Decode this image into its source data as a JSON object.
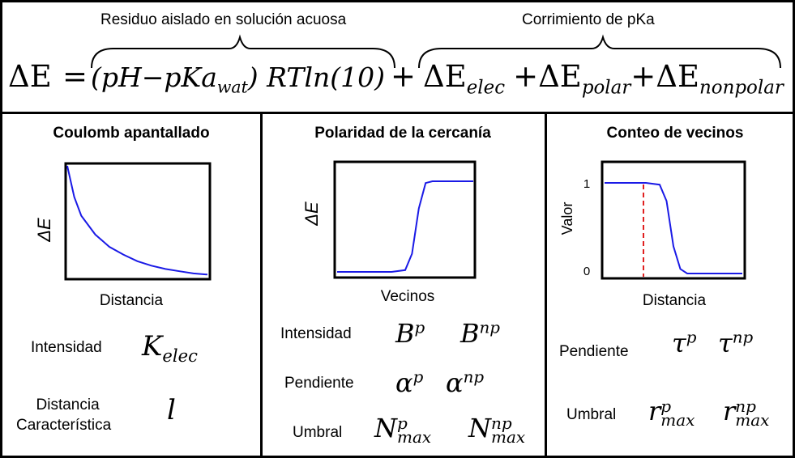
{
  "header": {
    "label_left": "Residuo aislado en solución acuosa",
    "label_right": "Corrimiento de pKa",
    "eq_lhs": "ΔE",
    "eq_equals": "=",
    "eq_term1": "(pH−pKa",
    "eq_term1_sub": "wat",
    "eq_term1_tail": ") RTln(10)",
    "eq_plus1": "+",
    "eq_elec": "ΔE",
    "eq_elec_sub": "elec",
    "eq_plus2": "+ΔE",
    "eq_polar_sub": "polar",
    "eq_plus3": "+ΔE",
    "eq_nonpolar_sub": "nonpolar"
  },
  "panels": {
    "coulomb": {
      "title": "Coulomb apantallado",
      "ylabel": "ΔE",
      "xlabel": "Distancia",
      "param1_label": "Intensidad",
      "param1_sym": "K",
      "param1_sub": "elec",
      "param2_label_l1": "Distancia",
      "param2_label_l2": "Característica",
      "param2_sym": "l"
    },
    "polar": {
      "title": "Polaridad de la cercanía",
      "ylabel": "ΔE",
      "xlabel": "Vecinos",
      "row1_label": "Intensidad",
      "row1_a": "B",
      "row1_a_sup": "p",
      "row1_b": "B",
      "row1_b_sup": "np",
      "row2_label": "Pendiente",
      "row2_a": "α",
      "row2_a_sup": "p",
      "row2_b": "α",
      "row2_b_sup": "np",
      "row3_label": "Umbral",
      "row3_a": "N",
      "row3_a_sup": "p",
      "row3_a_sub": "max",
      "row3_b": "N",
      "row3_b_sup": "np",
      "row3_b_sub": "max"
    },
    "count": {
      "title": "Conteo de vecinos",
      "ylabel": "Valor",
      "xlabel": "Distancia",
      "ytick_top": "1",
      "ytick_bottom": "0",
      "row1_label": "Pendiente",
      "row1_a": "τ",
      "row1_a_sup": "p",
      "row1_b": "τ",
      "row1_b_sup": "np",
      "row2_label": "Umbral",
      "row2_a": "r",
      "row2_a_sup": "p",
      "row2_a_sub": "max",
      "row2_b": "r",
      "row2_b_sup": "np",
      "row2_b_sub": "max"
    }
  },
  "colors": {
    "curve": "#1a1ae6",
    "threshold": "#e02020",
    "border": "#000000"
  },
  "chart_data": [
    {
      "type": "line",
      "title": "Coulomb apantallado",
      "xlabel": "Distancia",
      "ylabel": "ΔE",
      "x": [
        0,
        0.05,
        0.1,
        0.2,
        0.3,
        0.4,
        0.5,
        0.6,
        0.7,
        0.8,
        0.9,
        1.0
      ],
      "y": [
        1.0,
        0.72,
        0.55,
        0.38,
        0.27,
        0.2,
        0.14,
        0.1,
        0.07,
        0.05,
        0.03,
        0.02
      ]
    },
    {
      "type": "line",
      "title": "Polaridad de la cercanía",
      "xlabel": "Vecinos",
      "ylabel": "ΔE",
      "x": [
        0,
        0.1,
        0.2,
        0.3,
        0.4,
        0.5,
        0.55,
        0.6,
        0.65,
        0.7,
        0.8,
        0.9,
        1.0
      ],
      "y": [
        0.0,
        0.0,
        0.0,
        0.0,
        0.0,
        0.02,
        0.2,
        0.7,
        0.98,
        1.0,
        1.0,
        1.0,
        1.0
      ]
    },
    {
      "type": "line",
      "title": "Conteo de vecinos",
      "xlabel": "Distancia",
      "ylabel": "Valor",
      "ylim": [
        0,
        1
      ],
      "yticks": [
        0,
        1
      ],
      "x": [
        0,
        0.1,
        0.2,
        0.3,
        0.4,
        0.45,
        0.5,
        0.55,
        0.6,
        0.7,
        0.8,
        0.9,
        1.0
      ],
      "y": [
        1.0,
        1.0,
        1.0,
        1.0,
        0.98,
        0.8,
        0.3,
        0.05,
        0.0,
        0.0,
        0.0,
        0.0,
        0.0
      ]
    }
  ]
}
